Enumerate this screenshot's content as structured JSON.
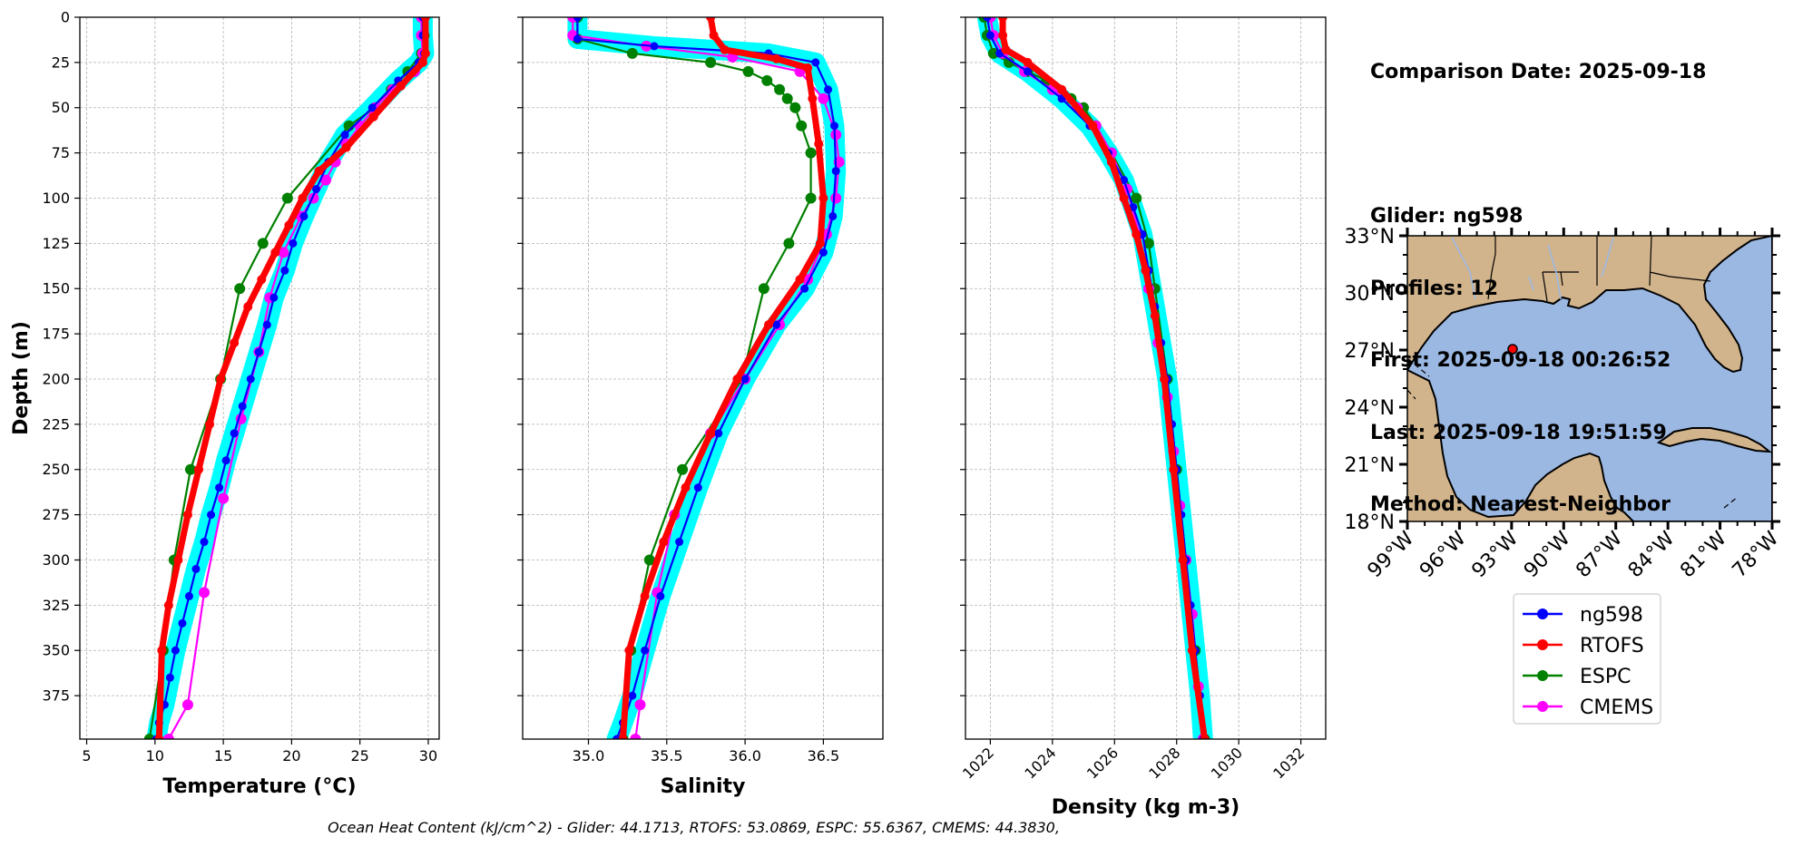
{
  "info": {
    "comparison_date": "Comparison Date: 2025-09-18",
    "glider": "Glider: ng598",
    "profiles": "Profiles: 12",
    "first": "First: 2025-09-18 00:26:52",
    "last": "Last: 2025-09-18 19:51:59",
    "method": "Method: Nearest-Neighbor"
  },
  "footer": "Ocean Heat Content (kJ/cm^2) - Glider: 44.1713,  RTOFS: 53.0869,  ESPC: 55.6367,  CMEMS: 44.3830,",
  "chart_data": [
    {
      "type": "line",
      "xlabel": "Temperature (°C)",
      "ylabel": "Depth (m)",
      "xlim": [
        4.5,
        30.8
      ],
      "ylim": [
        399,
        0
      ],
      "xticks": [
        5,
        10,
        15,
        20,
        25,
        30
      ],
      "yticks": [
        0,
        25,
        50,
        75,
        100,
        125,
        150,
        175,
        200,
        225,
        250,
        275,
        300,
        325,
        350,
        375
      ],
      "grid": true,
      "series": [
        {
          "name": "ng598",
          "color": "#0000ff",
          "x": [
            29.6,
            29.6,
            29.7,
            29.3,
            27.8,
            25.9,
            23.9,
            22.7,
            21.8,
            20.9,
            20.1,
            19.5,
            18.7,
            18.2,
            17.6,
            17.0,
            16.4,
            15.8,
            15.2,
            14.7,
            14.1,
            13.6,
            13.0,
            12.5,
            12.0,
            11.5,
            11.1,
            10.7,
            10.3,
            10.1
          ],
          "y": [
            0,
            10,
            20,
            25,
            35,
            50,
            65,
            80,
            95,
            110,
            125,
            140,
            155,
            170,
            185,
            200,
            215,
            230,
            245,
            260,
            275,
            290,
            305,
            320,
            335,
            350,
            365,
            380,
            390,
            399
          ]
        },
        {
          "name": "RTOFS",
          "color": "#ff0000",
          "x": [
            29.8,
            29.8,
            29.6,
            28.0,
            26.0,
            24.0,
            22.0,
            20.8,
            19.8,
            18.8,
            17.8,
            16.8,
            15.8,
            14.8,
            14.0,
            13.2,
            12.4,
            11.7,
            11.0,
            10.5,
            10.3
          ],
          "y": [
            0,
            20,
            25,
            38,
            55,
            72,
            85,
            100,
            115,
            130,
            145,
            160,
            180,
            200,
            225,
            250,
            275,
            300,
            325,
            350,
            399
          ]
        },
        {
          "name": "ESPC",
          "color": "#008000",
          "x": [
            29.7,
            29.7,
            29.5,
            28.5,
            27.3,
            26.1,
            24.2,
            19.7,
            17.9,
            16.2,
            14.8,
            12.6,
            11.4,
            10.6,
            9.6
          ],
          "y": [
            0,
            10,
            20,
            30,
            40,
            50,
            60,
            100,
            125,
            150,
            200,
            250,
            300,
            350,
            399
          ]
        },
        {
          "name": "CMEMS",
          "color": "#ff00ff",
          "x": [
            29.5,
            29.5,
            29.6,
            29.0,
            27.4,
            26.1,
            25.0,
            24.0,
            23.2,
            22.5,
            21.6,
            20.7,
            19.4,
            18.4,
            17.6,
            16.3,
            15.0,
            13.6,
            12.4,
            11.0
          ],
          "y": [
            0,
            10,
            20,
            30,
            40,
            50,
            60,
            70,
            80,
            90,
            100,
            110,
            130,
            155,
            185,
            222,
            266,
            318,
            380,
            399
          ]
        }
      ]
    },
    {
      "type": "line",
      "xlabel": "Salinity",
      "ylabel": "",
      "xlim": [
        34.58,
        36.88
      ],
      "ylim": [
        399,
        0
      ],
      "xticks": [
        35.0,
        35.5,
        36.0,
        36.5
      ],
      "yticks": [
        0,
        25,
        50,
        75,
        100,
        125,
        150,
        175,
        200,
        225,
        250,
        275,
        300,
        325,
        350,
        375
      ],
      "grid": true,
      "series": [
        {
          "name": "ng598",
          "color": "#0000ff",
          "x": [
            34.93,
            34.93,
            35.42,
            36.15,
            36.45,
            36.53,
            36.57,
            36.58,
            36.56,
            36.5,
            36.38,
            36.2,
            36.0,
            35.83,
            35.7,
            35.58,
            35.46,
            35.36,
            35.28,
            35.22,
            35.18
          ],
          "y": [
            0,
            12,
            16,
            20,
            25,
            40,
            60,
            85,
            110,
            130,
            150,
            170,
            200,
            230,
            260,
            290,
            320,
            350,
            375,
            390,
            399
          ]
        },
        {
          "name": "RTOFS",
          "color": "#ff0000",
          "x": [
            35.78,
            35.8,
            35.87,
            36.2,
            36.4,
            36.43,
            36.47,
            36.5,
            36.48,
            36.35,
            36.15,
            35.95,
            35.78,
            35.62,
            35.48,
            35.36,
            35.26,
            35.22
          ],
          "y": [
            0,
            10,
            18,
            23,
            28,
            45,
            70,
            100,
            125,
            145,
            170,
            200,
            230,
            260,
            290,
            320,
            350,
            399
          ]
        },
        {
          "name": "ESPC",
          "color": "#008000",
          "x": [
            34.93,
            34.93,
            35.28,
            35.78,
            36.02,
            36.14,
            36.22,
            36.27,
            36.32,
            36.36,
            36.42,
            36.42,
            36.28,
            36.12,
            35.98,
            35.6,
            35.39,
            35.27,
            35.22
          ],
          "y": [
            0,
            12,
            20,
            25,
            30,
            35,
            40,
            45,
            50,
            60,
            75,
            100,
            125,
            150,
            200,
            250,
            300,
            350,
            399
          ]
        },
        {
          "name": "CMEMS",
          "color": "#ff00ff",
          "x": [
            34.9,
            34.9,
            35.37,
            35.92,
            36.35,
            36.5,
            36.58,
            36.6,
            36.58,
            36.52,
            36.4,
            36.22,
            36.0,
            35.78,
            35.55,
            35.44,
            35.33,
            35.3
          ],
          "y": [
            0,
            10,
            16,
            22,
            30,
            45,
            65,
            80,
            100,
            120,
            145,
            170,
            200,
            230,
            275,
            318,
            380,
            399
          ]
        }
      ]
    },
    {
      "type": "line",
      "xlabel": "Density (kg m-3)",
      "ylabel": "",
      "xlim": [
        1021.2,
        1032.8
      ],
      "ylim": [
        399,
        0
      ],
      "xticks": [
        1022,
        1024,
        1026,
        1028,
        1030,
        1032
      ],
      "yticks": [
        0,
        25,
        50,
        75,
        100,
        125,
        150,
        175,
        200,
        225,
        250,
        275,
        300,
        325,
        350,
        375
      ],
      "grid": true,
      "series": [
        {
          "name": "ng598",
          "color": "#0000ff",
          "x": [
            1021.9,
            1022.0,
            1022.3,
            1023.2,
            1024.3,
            1025.2,
            1025.8,
            1026.3,
            1026.6,
            1026.9,
            1027.1,
            1027.3,
            1027.5,
            1027.7,
            1027.85,
            1028.0,
            1028.15,
            1028.3,
            1028.45,
            1028.6,
            1028.75,
            1028.85
          ],
          "y": [
            0,
            10,
            20,
            30,
            45,
            60,
            75,
            90,
            105,
            120,
            140,
            160,
            180,
            200,
            225,
            250,
            275,
            300,
            325,
            350,
            375,
            399
          ]
        },
        {
          "name": "RTOFS",
          "color": "#ff0000",
          "x": [
            1022.4,
            1022.4,
            1022.5,
            1023.2,
            1024.3,
            1025.3,
            1025.9,
            1026.3,
            1026.7,
            1027.0,
            1027.3,
            1027.6,
            1027.9,
            1028.2,
            1028.5,
            1028.9
          ],
          "y": [
            0,
            10,
            18,
            25,
            40,
            60,
            80,
            100,
            120,
            140,
            165,
            200,
            250,
            300,
            350,
            399
          ]
        },
        {
          "name": "ESPC",
          "color": "#008000",
          "x": [
            1021.8,
            1021.9,
            1022.1,
            1022.6,
            1023.2,
            1023.8,
            1024.2,
            1024.6,
            1025.0,
            1025.4,
            1025.9,
            1026.7,
            1027.1,
            1027.3,
            1027.7,
            1028.0,
            1028.3,
            1028.6,
            1028.9
          ],
          "y": [
            0,
            10,
            20,
            25,
            30,
            35,
            40,
            45,
            50,
            60,
            75,
            100,
            125,
            150,
            200,
            250,
            300,
            350,
            399
          ]
        },
        {
          "name": "CMEMS",
          "color": "#ff00ff",
          "x": [
            1022.0,
            1022.1,
            1022.4,
            1023.1,
            1024.0,
            1024.8,
            1025.4,
            1025.9,
            1026.4,
            1026.8,
            1027.1,
            1027.4,
            1027.7,
            1027.9,
            1028.1,
            1028.3,
            1028.5,
            1028.7,
            1028.85
          ],
          "y": [
            0,
            10,
            20,
            30,
            40,
            50,
            60,
            75,
            95,
            120,
            150,
            180,
            210,
            240,
            270,
            300,
            330,
            370,
            399
          ]
        }
      ]
    },
    {
      "type": "map",
      "lon_ticks": [
        "99°W",
        "96°W",
        "93°W",
        "90°W",
        "87°W",
        "84°W",
        "81°W",
        "78°W"
      ],
      "lat_ticks": [
        "33°N",
        "30°N",
        "27°N",
        "24°N",
        "21°N",
        "18°N"
      ],
      "lon_range": [
        -99,
        -78
      ],
      "lat_range": [
        18,
        33
      ],
      "glider_position": {
        "lon": -93.1,
        "lat": 27.25
      },
      "land_color": "#d2b48c",
      "water_color": "#9bb8e3"
    }
  ],
  "legend": {
    "placement": "below-map",
    "entries": [
      {
        "label": "ng598",
        "color": "#0000ff"
      },
      {
        "label": "RTOFS",
        "color": "#ff0000"
      },
      {
        "label": "ESPC",
        "color": "#008000"
      },
      {
        "label": "CMEMS",
        "color": "#ff00ff"
      }
    ]
  },
  "glider_band_color": "#00ffff"
}
